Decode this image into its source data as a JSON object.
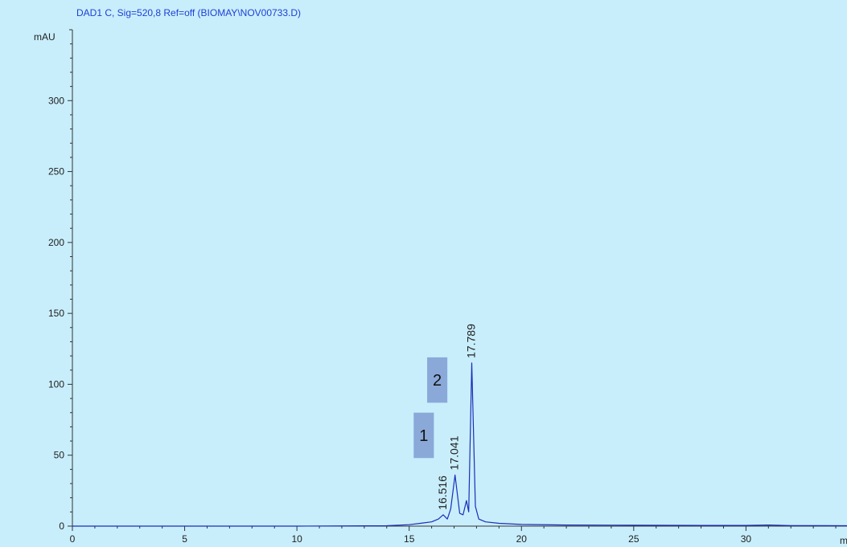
{
  "header": {
    "signal_title": "DAD1 C, Sig=520,8 Ref=off (BIOMAY\\NOV00733.D)"
  },
  "colors": {
    "background": "#c8eefc",
    "trace": "#1a2fb8",
    "title": "#1f3fd6",
    "axis": "#333333",
    "marker_fill": "#8aa9d9"
  },
  "chart_data": {
    "type": "line",
    "title": "DAD1 C, Sig=520,8 Ref=off (BIOMAY\\NOV00733.D)",
    "ylabel": "mAU",
    "xlabel": "m",
    "xlim": [
      0,
      34.5
    ],
    "ylim": [
      0,
      350
    ],
    "x_ticks": [
      0,
      5,
      10,
      15,
      20,
      25,
      30
    ],
    "y_ticks": [
      0,
      50,
      100,
      150,
      200,
      250,
      300
    ],
    "grid": false,
    "series": [
      {
        "x": [
          0,
          5,
          10,
          14,
          15,
          15.5,
          16.0,
          16.3,
          16.516,
          16.7,
          16.85,
          17.041,
          17.25,
          17.4,
          17.55,
          17.65,
          17.789,
          17.95,
          18.1,
          18.4,
          19.0,
          20,
          22,
          25,
          28,
          30,
          31,
          32,
          34.5
        ],
        "y": [
          0,
          0,
          0,
          0.3,
          1,
          2,
          3,
          5,
          8,
          5,
          12,
          36,
          9,
          8,
          18,
          10,
          115,
          14,
          5,
          3,
          2,
          1.2,
          0.8,
          0.6,
          0.5,
          0.5,
          0.8,
          0.4,
          0.3
        ]
      }
    ],
    "peak_labels": [
      {
        "x": 16.516,
        "y": 8,
        "text": "16.516"
      },
      {
        "x": 17.041,
        "y": 36,
        "text": "17.041"
      },
      {
        "x": 17.789,
        "y": 115,
        "text": "17.789"
      }
    ],
    "annotations": [
      {
        "text": "1",
        "x_min": 15.2,
        "x_max": 16.1,
        "y_min": 48,
        "y_max": 80
      },
      {
        "text": "2",
        "x_min": 15.8,
        "x_max": 16.7,
        "y_min": 87,
        "y_max": 119
      }
    ]
  }
}
